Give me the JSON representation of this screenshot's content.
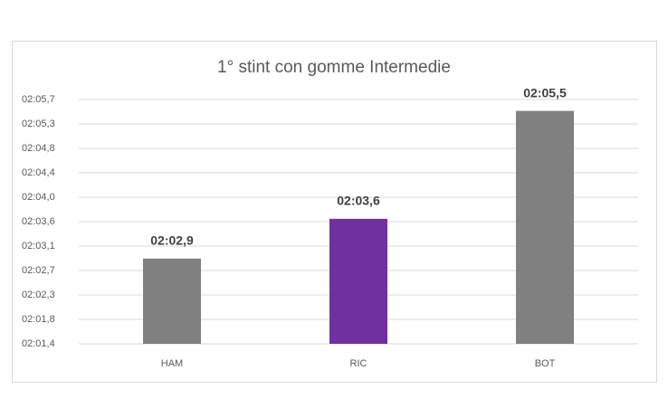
{
  "chart_data": {
    "type": "bar",
    "title": "1° stint con gomme Intermedie",
    "categories": [
      "HAM",
      "RIC",
      "BOT"
    ],
    "values": [
      122.9,
      123.6,
      125.5
    ],
    "value_labels": [
      "02:02,9",
      "02:03,6",
      "02:05,5"
    ],
    "colors": [
      "#808080",
      "#7030a0",
      "#808080"
    ],
    "ylim": [
      121.4,
      125.7
    ],
    "yticks": [
      {
        "value": 121.4,
        "label": "02:01,4"
      },
      {
        "value": 121.83,
        "label": "02:01,8"
      },
      {
        "value": 122.26,
        "label": "02:02,3"
      },
      {
        "value": 122.69,
        "label": "02:02,7"
      },
      {
        "value": 123.12,
        "label": "02:03,1"
      },
      {
        "value": 123.55,
        "label": "02:03,6"
      },
      {
        "value": 123.98,
        "label": "02:04,0"
      },
      {
        "value": 124.41,
        "label": "02:04,4"
      },
      {
        "value": 124.84,
        "label": "02:04,8"
      },
      {
        "value": 125.27,
        "label": "02:05,3"
      },
      {
        "value": 125.7,
        "label": "02:05,7"
      }
    ],
    "grid": true
  }
}
